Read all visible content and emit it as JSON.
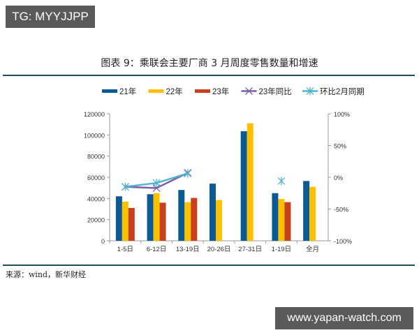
{
  "watermarks": {
    "top": "TG: MYYJJPP",
    "bottom": "www.yapan-watch.com"
  },
  "figure": {
    "title": "图表 9：乘联会主要厂商 3 月周度零售数量和增速",
    "source": "来源：wind，新华财经"
  },
  "colors": {
    "y21": "#0b5a94",
    "y22": "#ffc000",
    "y23": "#c8401e",
    "yoy23": "#7b5ea7",
    "mom_feb": "#4fb3cf",
    "rule": "#1f4e5f"
  },
  "chart_data": {
    "type": "bar",
    "title": "图表 9：乘联会主要厂商 3 月周度零售数量和增速",
    "categories": [
      "1-5日",
      "6-12日",
      "13-19日",
      "20-26日",
      "27-31日",
      "1-19日",
      "全月"
    ],
    "series": [
      {
        "name": "21年",
        "type": "bar",
        "axis": "left",
        "values": [
          42000,
          44000,
          48000,
          54000,
          103500,
          45000,
          56500
        ]
      },
      {
        "name": "22年",
        "type": "bar",
        "axis": "left",
        "values": [
          37000,
          45000,
          36500,
          38500,
          111000,
          39500,
          51000
        ]
      },
      {
        "name": "23年",
        "type": "bar",
        "axis": "left",
        "values": [
          31000,
          36000,
          40500,
          null,
          null,
          36500,
          null
        ]
      },
      {
        "name": "23年同比",
        "type": "line",
        "axis": "right",
        "values": [
          -15,
          -17,
          7,
          null,
          null,
          null,
          null
        ]
      },
      {
        "name": "环比2月同期",
        "type": "line",
        "axis": "right",
        "values": [
          -15,
          -9,
          6,
          null,
          null,
          -6,
          null
        ]
      }
    ],
    "left_axis": {
      "ticks": [
        "0",
        "20000",
        "40000",
        "60000",
        "80000",
        "100000",
        "120000"
      ],
      "ylim": [
        0,
        120000
      ]
    },
    "right_axis": {
      "ticks": [
        "-100%",
        "-50%",
        "0%",
        "50%",
        "100%"
      ],
      "ylim": [
        -100,
        100
      ]
    },
    "legend": [
      "21年",
      "22年",
      "23年",
      "23年同比",
      "环比2月同期"
    ],
    "legend_position": "top",
    "grid": false
  }
}
